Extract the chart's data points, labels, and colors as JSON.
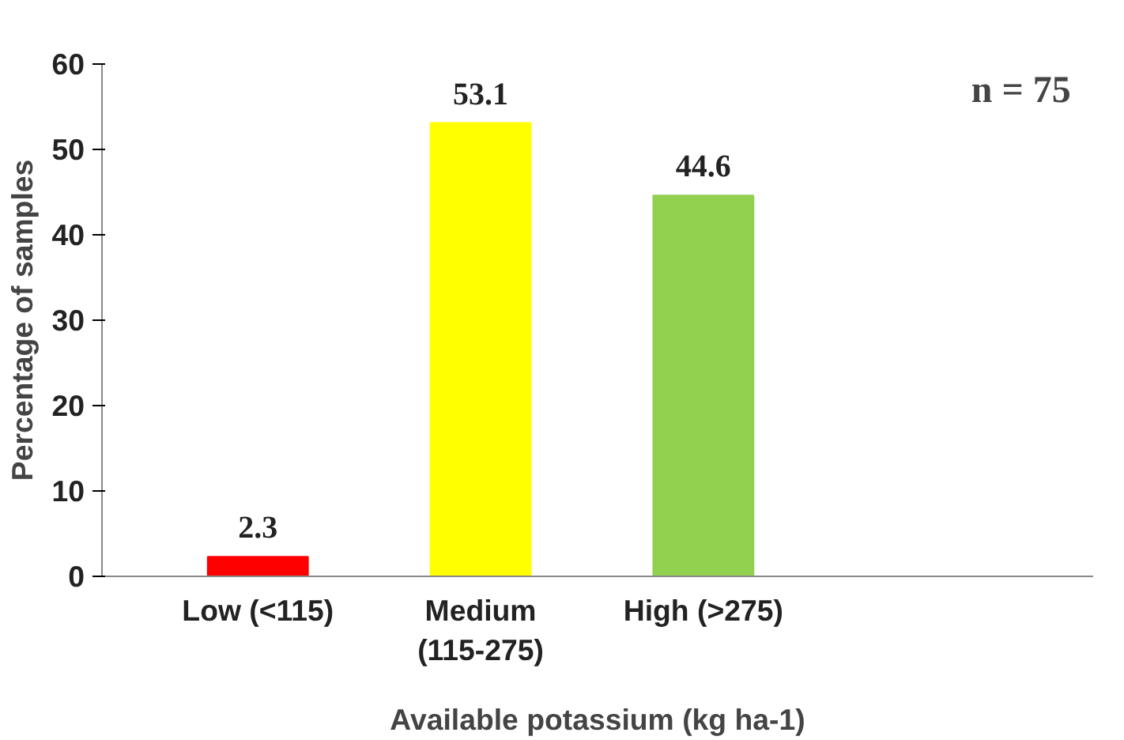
{
  "chart_data": {
    "type": "bar",
    "categories": [
      "Low (<115)",
      "Medium (115-275)",
      "High (>275)"
    ],
    "values": [
      2.3,
      53.1,
      44.6
    ],
    "colors": [
      "#ff0000",
      "#ffff00",
      "#92d050"
    ],
    "xlabel": "Available potassium (kg ha-1)",
    "ylabel": "Percentage of samples",
    "ylim": [
      0,
      60
    ],
    "yticks": [
      0,
      10,
      20,
      30,
      40,
      50,
      60
    ],
    "grid": false,
    "data_labels": true,
    "annotations": [
      "n = 75"
    ]
  }
}
